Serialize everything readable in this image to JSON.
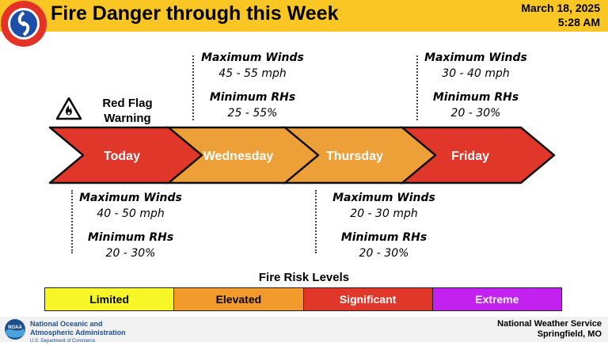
{
  "header": {
    "title": "Fire Danger through this Week",
    "date": "March 18, 2025",
    "time": "5:28 AM",
    "logo_ring_text": "NATIONAL WEATHER SERVICE",
    "bg_color": "#f9c623"
  },
  "red_flag": {
    "line1": "Red Flag",
    "line2": "Warning",
    "icon": "fire-warning-icon"
  },
  "days": [
    {
      "label": "Today",
      "color": "#e0372a"
    },
    {
      "label": "Wednesday",
      "color": "#eea038"
    },
    {
      "label": "Thursday",
      "color": "#eea038"
    },
    {
      "label": "Friday",
      "color": "#e0372a"
    }
  ],
  "conditions": {
    "today": {
      "winds_label": "Maximum Winds",
      "winds": "40 - 50 mph",
      "rh_label": "Minimum RHs",
      "rh": "20 - 30%"
    },
    "wednesday": {
      "winds_label": "Maximum Winds",
      "winds": "45 - 55 mph",
      "rh_label": "Minimum RHs",
      "rh": "25 - 55%"
    },
    "thursday": {
      "winds_label": "Maximum Winds",
      "winds": "20 - 30 mph",
      "rh_label": "Minimum RHs",
      "rh": "20 - 30%"
    },
    "friday": {
      "winds_label": "Maximum Winds",
      "winds": "30 - 40 mph",
      "rh_label": "Minimum RHs",
      "rh": "20 - 30%"
    }
  },
  "risk_levels": {
    "title": "Fire Risk Levels",
    "levels": [
      {
        "label": "Limited",
        "color": "#f7f728",
        "text_color": "#000000"
      },
      {
        "label": "Elevated",
        "color": "#f39a2c",
        "text_color": "#000000"
      },
      {
        "label": "Significant",
        "color": "#e0372a",
        "text_color": "#ffffff"
      },
      {
        "label": "Extreme",
        "color": "#c221f0",
        "text_color": "#ffffff"
      }
    ]
  },
  "footer": {
    "noaa_line1": "National Oceanic and",
    "noaa_line2": "Atmospheric Administration",
    "noaa_line3": "U.S. Department of Commerce",
    "noaa_logo_text": "NOAA",
    "nws_line1": "National Weather Service",
    "nws_line2": "Springfield, MO"
  }
}
